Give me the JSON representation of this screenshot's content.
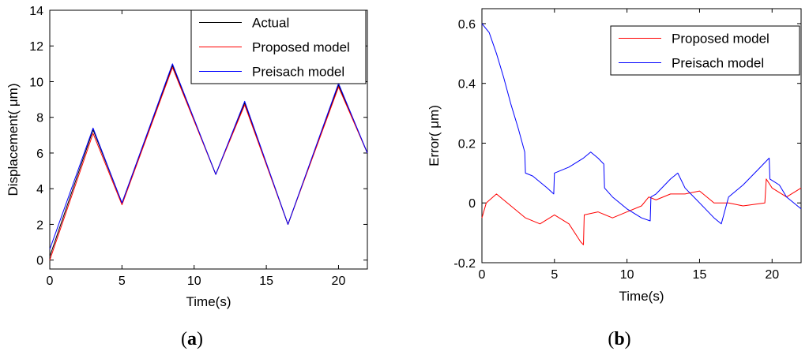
{
  "chart_data": [
    {
      "type": "line",
      "caption": "a",
      "title": "",
      "xlabel": "Time(s)",
      "ylabel": "Displacement( μm)",
      "xlim": [
        0,
        22
      ],
      "ylim": [
        -0.5,
        14
      ],
      "xticks": [
        0,
        5,
        10,
        15,
        20
      ],
      "yticks": [
        0,
        2,
        4,
        6,
        8,
        10,
        12,
        14
      ],
      "legend_position": "top-right",
      "series": [
        {
          "name": "Actual",
          "color": "#000000",
          "x": [
            0,
            3.0,
            5.0,
            8.5,
            11.5,
            13.5,
            16.5,
            20.0,
            22.0
          ],
          "y": [
            0.2,
            7.3,
            3.2,
            10.9,
            4.8,
            8.8,
            2.0,
            9.8,
            6.0
          ]
        },
        {
          "name": "Proposed model",
          "color": "#ff0000",
          "x": [
            0,
            3.0,
            5.0,
            8.5,
            11.5,
            13.5,
            16.5,
            20.0,
            22.0
          ],
          "y": [
            0.0,
            7.1,
            3.1,
            10.8,
            4.8,
            8.7,
            2.0,
            9.7,
            6.0
          ]
        },
        {
          "name": "Preisach model",
          "color": "#0000ff",
          "x": [
            0,
            3.0,
            5.0,
            8.5,
            11.5,
            13.5,
            16.5,
            20.0,
            22.0
          ],
          "y": [
            0.6,
            7.4,
            3.2,
            11.0,
            4.8,
            8.9,
            2.0,
            9.9,
            6.0
          ]
        }
      ]
    },
    {
      "type": "line",
      "caption": "b",
      "title": "",
      "xlabel": "Time(s)",
      "ylabel": "Error( μm)",
      "xlim": [
        0,
        22
      ],
      "ylim": [
        -0.2,
        0.65
      ],
      "xticks": [
        0,
        5,
        10,
        15,
        20
      ],
      "yticks": [
        -0.2,
        0,
        0.2,
        0.4,
        0.6
      ],
      "legend_position": "top-right",
      "series": [
        {
          "name": "Proposed model",
          "color": "#ff0000",
          "x": [
            0,
            0.3,
            1.0,
            2.0,
            3.0,
            4.0,
            5.0,
            6.0,
            6.8,
            7.0,
            7.05,
            8.0,
            9.0,
            10.0,
            11.0,
            11.5,
            12.0,
            13.0,
            14.0,
            15.0,
            16.0,
            17.0,
            18.0,
            19.5,
            19.6,
            20.0,
            21.0,
            22.0
          ],
          "y": [
            -0.05,
            0.0,
            0.03,
            -0.01,
            -0.05,
            -0.07,
            -0.04,
            -0.07,
            -0.13,
            -0.14,
            -0.04,
            -0.03,
            -0.05,
            -0.03,
            -0.01,
            0.02,
            0.01,
            0.03,
            0.03,
            0.04,
            0.0,
            0.0,
            -0.01,
            0.0,
            0.08,
            0.05,
            0.02,
            0.05
          ]
        },
        {
          "name": "Preisach model",
          "color": "#0000ff",
          "x": [
            0,
            0.5,
            1.0,
            1.5,
            2.0,
            2.5,
            2.95,
            3.0,
            3.5,
            4.0,
            4.5,
            4.95,
            5.0,
            6.0,
            7.0,
            7.5,
            8.0,
            8.4,
            8.45,
            9.0,
            10.0,
            11.0,
            11.6,
            11.65,
            12.0,
            13.0,
            13.5,
            14.0,
            15.0,
            16.0,
            16.5,
            17.0,
            18.0,
            19.0,
            19.8,
            19.85,
            20.5,
            21.0,
            22.0
          ],
          "y": [
            0.6,
            0.57,
            0.5,
            0.42,
            0.33,
            0.25,
            0.17,
            0.1,
            0.09,
            0.07,
            0.05,
            0.03,
            0.1,
            0.12,
            0.15,
            0.17,
            0.15,
            0.13,
            0.05,
            0.02,
            -0.02,
            -0.05,
            -0.06,
            0.02,
            0.03,
            0.08,
            0.1,
            0.05,
            0.0,
            -0.05,
            -0.07,
            0.02,
            0.06,
            0.11,
            0.15,
            0.08,
            0.06,
            0.02,
            -0.02
          ]
        }
      ]
    }
  ]
}
